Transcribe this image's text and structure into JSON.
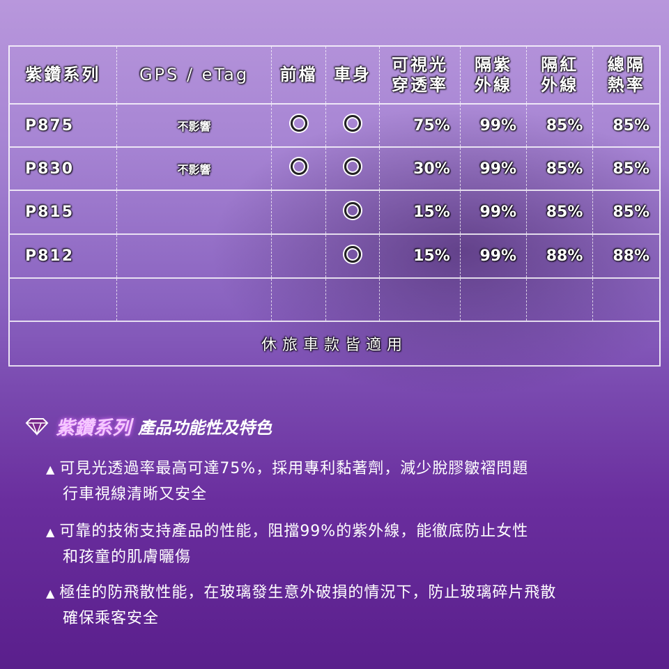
{
  "table": {
    "headers": [
      "紫鑽系列",
      "GPS / eTag",
      "前檔",
      "車身",
      "可視光\n穿透率",
      "隔紫\n外線",
      "隔紅\n外線",
      "總隔\n熱率"
    ],
    "rows": [
      {
        "model": "P875",
        "gps": "不影響",
        "front": true,
        "body": true,
        "vlt": "75%",
        "uv": "99%",
        "ir": "85%",
        "heat": "85%"
      },
      {
        "model": "P830",
        "gps": "不影響",
        "front": true,
        "body": true,
        "vlt": "30%",
        "uv": "99%",
        "ir": "85%",
        "heat": "85%"
      },
      {
        "model": "P815",
        "gps": "",
        "front": false,
        "body": true,
        "vlt": "15%",
        "uv": "99%",
        "ir": "85%",
        "heat": "85%"
      },
      {
        "model": "P812",
        "gps": "",
        "front": false,
        "body": true,
        "vlt": "15%",
        "uv": "99%",
        "ir": "88%",
        "heat": "88%"
      }
    ],
    "footer": "休旅車款皆適用"
  },
  "features": {
    "title_highlight": "紫鑽系列",
    "title_rest": "產品功能性及特色",
    "icon": "diamond-icon",
    "items": [
      {
        "line1": "可見光透過率最高可達75%，採用專利黏著劑，減少脫膠皺褶問題",
        "line2": "行車視線清晰又安全"
      },
      {
        "line1": "可靠的技術支持產品的性能，阻擋99%的紫外線，能徹底防止女性",
        "line2": "和孩童的肌膚曬傷"
      },
      {
        "line1": "極佳的防飛散性能，在玻璃發生意外破損的情況下，防止玻璃碎片飛散",
        "line2": "確保乘客安全"
      }
    ],
    "bullet": "▲"
  },
  "colors": {
    "highlight": "#f5c8ff",
    "background": "#7a4ab0"
  }
}
